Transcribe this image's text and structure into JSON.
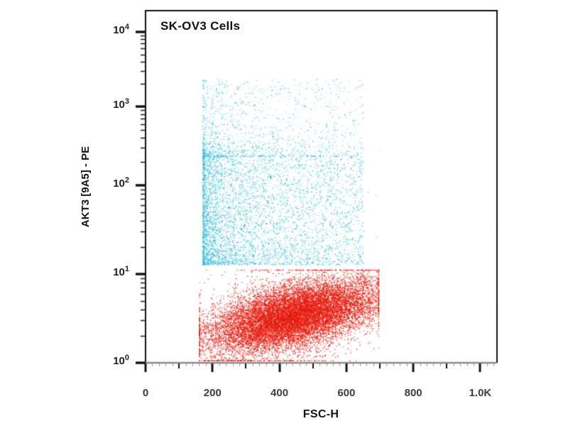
{
  "chart_data": {
    "type": "scatter",
    "title": "SK-OV3 Cells",
    "xlabel": "FSC-H",
    "ylabel": "AKT3 [9A5] - PE",
    "x_axis": {
      "scale": "linear",
      "range": [
        0,
        1050
      ],
      "major_ticks": [
        {
          "value": 0,
          "label": "0"
        },
        {
          "value": 200,
          "label": "200"
        },
        {
          "value": 400,
          "label": "400"
        },
        {
          "value": 600,
          "label": "600"
        },
        {
          "value": 800,
          "label": "800"
        },
        {
          "value": 1000,
          "label": "1.0K"
        }
      ],
      "medium_tick_step": 100,
      "minor_tick_step": 20,
      "axis_line_color": "#8a8a8a",
      "major_tick_color": "#111111",
      "minor_tick_color": "#9a9a9a"
    },
    "y_axis": {
      "scale": "log",
      "range": [
        1,
        18000
      ],
      "major_ticks": [
        {
          "value": 1,
          "base": "10",
          "exp": "0"
        },
        {
          "value": 10,
          "base": "10",
          "exp": "1"
        },
        {
          "value": 100,
          "base": "10",
          "exp": "2"
        },
        {
          "value": 1000,
          "base": "10",
          "exp": "3"
        },
        {
          "value": 10000,
          "base": "10",
          "exp": "4"
        }
      ],
      "decade_fractions": [
        0,
        0.252,
        0.504,
        0.728,
        0.9395
      ],
      "axis_line_color": "#111111"
    },
    "populations": [
      {
        "name": "pe-positive-population",
        "color": "#28bedc",
        "dark_speck_color": "#1e5f78",
        "n": 6200,
        "fsc_min": 170,
        "fsc_spread": 480,
        "fsc_power": 1.9,
        "log_pe_min": 1.11,
        "log_pe_core_max": 2.37,
        "log_pe_tail_max": 3.37,
        "core_fraction": 0.78
      },
      {
        "name": "pe-negative-population",
        "color": "#eb190c",
        "dark_speck_color": "#461919",
        "n": 14500,
        "fsc_start": 175,
        "fsc_span": 480,
        "fsc_noise": 30,
        "log_pe_intercept": 0.3,
        "log_pe_slope": 0.42,
        "log_pe_noise": 0.17,
        "log_pe_min": 0.03,
        "log_pe_max": 1.05
      }
    ]
  }
}
